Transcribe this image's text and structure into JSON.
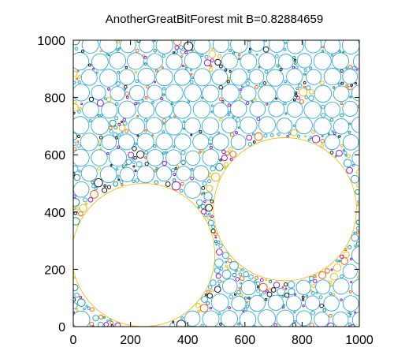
{
  "chart_data": {
    "type": "scatter",
    "title": "AnotherGreatBitForest mit B=0.82884659",
    "xlabel": "",
    "ylabel": "",
    "xlim": [
      0,
      1000
    ],
    "ylim": [
      0,
      1000
    ],
    "x_ticks": [
      0,
      200,
      400,
      600,
      800,
      1000
    ],
    "y_ticks": [
      0,
      200,
      400,
      600,
      800,
      1000
    ],
    "x_tick_labels": [
      "0",
      "200",
      "400",
      "600",
      "800",
      "1000"
    ],
    "y_tick_labels": [
      "0",
      "200",
      "400",
      "600",
      "800",
      "1000"
    ],
    "grid": false,
    "legend": "none",
    "large_circles": [
      {
        "cx": 245,
        "cy": 250,
        "r": 250
      },
      {
        "cx": 740,
        "cy": 410,
        "r": 250
      }
    ],
    "medium_circle_radius": 31,
    "palette": [
      "#1a9fd0",
      "#1a9fd0",
      "#1a9fd0",
      "#008a6e",
      "#9400d3",
      "#000000",
      "#e65c00",
      "#e6b800"
    ],
    "large_circle_color": "#e6b800",
    "medium_circle_color": "#1a9fd0"
  }
}
